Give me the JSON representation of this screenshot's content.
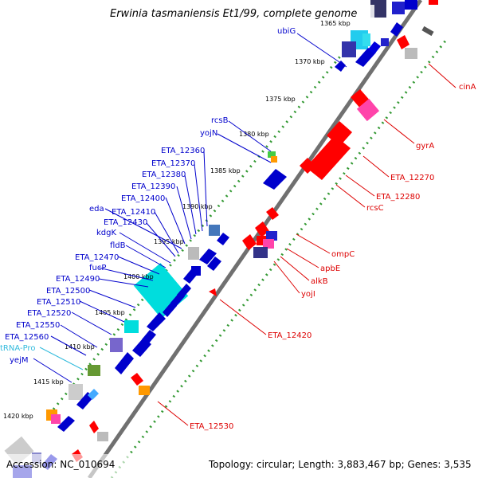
{
  "title": "Erwinia tasmaniensis Et1/99, complete genome",
  "footer": {
    "accession": "Accession: NC_010694",
    "summary": "Topology: circular; Length: 3,883,467 bp; Genes: 3,535"
  },
  "ticks": [
    "1365 kbp",
    "1370 kbp",
    "1375 kbp",
    "1380 kbp",
    "1385 kbp",
    "1390 kbp",
    "1395 kbp",
    "1400 kbp",
    "1405 kbp",
    "1410 kbp",
    "1415 kbp",
    "1420 kbp"
  ],
  "colors": {
    "forward_label": "#0000cc",
    "reverse_label": "#dd0000",
    "trna_label": "#33bbdd",
    "backbone": "#707070",
    "tick_dots": "#339933"
  },
  "labels_forward": [
    "ubiG",
    "rcsB",
    "yojN",
    "ETA_12360",
    "ETA_12370",
    "ETA_12380",
    "ETA_12390",
    "ETA_12400",
    "eda",
    "ETA_12410",
    "ETA_12430",
    "kdgK",
    "fldB",
    "ETA_12470",
    "fucP",
    "ETA_12490",
    "ETA_12500",
    "ETA_12510",
    "ETA_12520",
    "ETA_12550",
    "ETA_12560",
    "tRNA-Pro",
    "yejM"
  ],
  "labels_reverse": [
    "cinA",
    "gyrA",
    "ETA_12270",
    "ETA_12280",
    "rcsC",
    "ompC",
    "apbE",
    "alkB",
    "yojI",
    "ETA_12420",
    "ETA_12530"
  ]
}
